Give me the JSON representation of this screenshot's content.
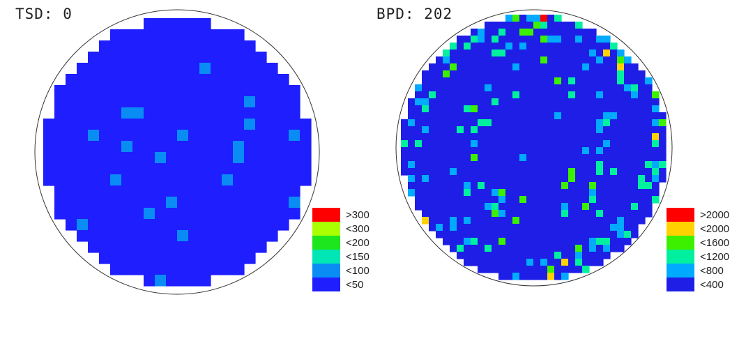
{
  "chart_data": [
    {
      "type": "heatmap",
      "title": "TSD: 0",
      "shape": "circular wafer map",
      "grid": "square cells",
      "legend": [
        {
          "label": ">300",
          "color": "#ff0000"
        },
        {
          "label": "<300",
          "color": "#aaff00"
        },
        {
          "label": "<200",
          "color": "#1ee61e"
        },
        {
          "label": "<150",
          "color": "#00e6b4"
        },
        {
          "label": "<100",
          "color": "#0a8cf5"
        },
        {
          "label": "<50",
          "color": "#1e1eff"
        }
      ],
      "legend_position": "bottom-right",
      "base_color": "#1e1eff",
      "outlier_color": "#0a8cf5",
      "distribution": "nearly uniform <50 with sparse isolated <100 cells"
    },
    {
      "type": "heatmap",
      "title": "BPD: 202",
      "shape": "circular wafer map",
      "grid": "square cells",
      "legend": [
        {
          "label": ">2000",
          "color": "#ff0000"
        },
        {
          "label": "<2000",
          "color": "#ffd200"
        },
        {
          "label": "<1600",
          "color": "#3cf000"
        },
        {
          "label": "<1200",
          "color": "#00f0a0"
        },
        {
          "label": "<800",
          "color": "#00aaff"
        },
        {
          "label": "<400",
          "color": "#1e1ee6"
        }
      ],
      "legend_position": "bottom-right",
      "base_color": "#1e1ee6",
      "distribution": "mostly <400 with scattered <800/<1200 clusters near edge and ring, few high cells at top edge"
    }
  ]
}
